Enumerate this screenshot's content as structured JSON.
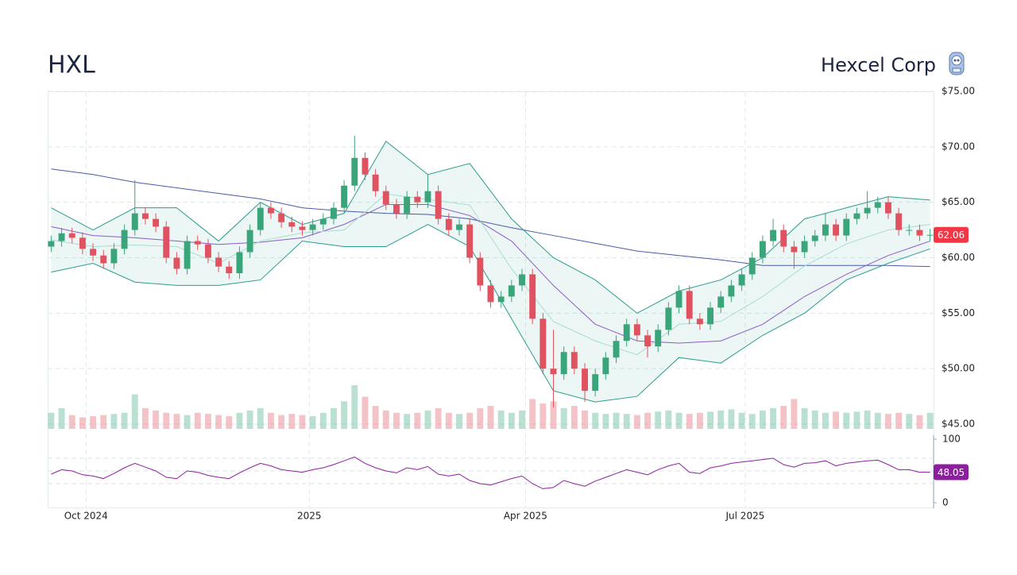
{
  "header": {
    "symbol": "HXL",
    "name": "Hexcel Corp"
  },
  "chart_data": [
    {
      "type": "candlestick",
      "xlim": [
        -1,
        253
      ],
      "xticks": [
        {
          "value": 10,
          "label": "Oct 2024"
        },
        {
          "value": 74,
          "label": "2025"
        },
        {
          "value": 136,
          "label": "Apr 2025"
        },
        {
          "value": 199,
          "label": "Jul 2025"
        }
      ],
      "ylim": [
        45,
        75
      ],
      "yticks": [
        {
          "value": 45,
          "label": "$45.00"
        },
        {
          "value": 50,
          "label": "$50.00"
        },
        {
          "value": 55,
          "label": "$55.00"
        },
        {
          "value": 60,
          "label": "$60.00"
        },
        {
          "value": 65,
          "label": "$65.00"
        },
        {
          "value": 70,
          "label": "$70.00"
        },
        {
          "value": 75,
          "label": "$75.00"
        }
      ],
      "grid": true,
      "up_color": "#3aa57a",
      "down_color": "#e0525f",
      "last_color": "#f23645",
      "x": [
        0,
        3,
        6,
        9,
        12,
        15,
        18,
        21,
        24,
        27,
        30,
        33,
        36,
        39,
        42,
        45,
        48,
        51,
        54,
        57,
        60,
        63,
        66,
        69,
        72,
        75,
        78,
        81,
        84,
        87,
        90,
        93,
        96,
        99,
        102,
        105,
        108,
        111,
        114,
        117,
        120,
        123,
        126,
        129,
        132,
        135,
        138,
        141,
        144,
        147,
        150,
        153,
        156,
        159,
        162,
        165,
        168,
        171,
        174,
        177,
        180,
        183,
        186,
        189,
        192,
        195,
        198,
        201,
        204,
        207,
        210,
        213,
        216,
        219,
        222,
        225,
        228,
        231,
        234,
        237,
        240,
        243,
        246,
        249,
        252
      ],
      "open": [
        61.0,
        61.5,
        62.2,
        61.8,
        60.8,
        60.2,
        59.5,
        60.8,
        62.5,
        64,
        63.5,
        62.8,
        60,
        59,
        61.5,
        61.2,
        60,
        59.2,
        58.6,
        60.5,
        62.5,
        64.5,
        64,
        63.2,
        62.8,
        62.5,
        63,
        63.5,
        64.5,
        66.5,
        69,
        67.5,
        66,
        64.8,
        64,
        65.5,
        65,
        66,
        63.5,
        62.5,
        63,
        60,
        57.5,
        56,
        56.5,
        57.5,
        58.5,
        54.5,
        50,
        49.5,
        51.5,
        50,
        48,
        49.5,
        51,
        52.5,
        54,
        53,
        52,
        53.5,
        55.5,
        57,
        54.5,
        54,
        55.5,
        56.5,
        57.5,
        58.5,
        60,
        61.5,
        62.5,
        61,
        60.5,
        61.5,
        62,
        63,
        62,
        63.5,
        64,
        64.5,
        65,
        64,
        62.5,
        62.5,
        62
      ],
      "high": [
        62.0,
        62.7,
        62.7,
        62.3,
        61.3,
        60.7,
        61.3,
        63.0,
        67.0,
        64.5,
        64.0,
        63.3,
        60.5,
        62.0,
        62.0,
        61.7,
        60.5,
        59.7,
        61.0,
        63.0,
        65.0,
        65.0,
        64.5,
        63.7,
        63.3,
        63.5,
        64.0,
        65.0,
        67.0,
        71.0,
        69.5,
        68.0,
        66.5,
        65.3,
        66.0,
        66.0,
        67.5,
        66.5,
        64.0,
        63.5,
        63.5,
        60.5,
        58.0,
        57.0,
        58.0,
        59.0,
        59.0,
        55.0,
        53.5,
        52.0,
        52.0,
        50.5,
        50.0,
        51.5,
        53.0,
        54.5,
        54.5,
        53.5,
        54.0,
        56.0,
        57.5,
        57.5,
        55.0,
        56.0,
        57.0,
        58.0,
        59.0,
        60.5,
        62.0,
        63.5,
        63.0,
        61.5,
        62.0,
        62.5,
        64.0,
        63.5,
        64.0,
        64.5,
        66.0,
        65.5,
        65.5,
        64.5,
        63.0,
        63.0,
        62.6
      ],
      "low": [
        60.5,
        61.0,
        61.3,
        60.3,
        59.7,
        59.0,
        59.0,
        60.3,
        62.0,
        63.0,
        62.3,
        59.5,
        58.5,
        58.5,
        60.7,
        59.5,
        58.7,
        58.1,
        58.1,
        60.0,
        62.0,
        63.5,
        62.7,
        62.3,
        62.0,
        62.0,
        62.5,
        63.0,
        64.0,
        66.0,
        67.0,
        65.5,
        64.3,
        63.5,
        63.5,
        64.5,
        64.5,
        63.0,
        62.0,
        62.0,
        59.5,
        57.0,
        55.5,
        55.5,
        56.0,
        57.0,
        54.0,
        49.5,
        46.5,
        49.0,
        49.5,
        47.0,
        47.5,
        49.0,
        50.5,
        52.0,
        52.5,
        51.0,
        51.5,
        53.0,
        55.0,
        54.0,
        53.5,
        53.5,
        55.0,
        56.0,
        57.0,
        58.0,
        59.5,
        61.0,
        60.5,
        59.0,
        60.0,
        61.0,
        61.5,
        61.5,
        61.5,
        63.0,
        63.5,
        64.0,
        63.5,
        62.0,
        62.0,
        61.5,
        61.5
      ],
      "close": [
        61.5,
        62.2,
        61.8,
        60.8,
        60.2,
        59.5,
        60.8,
        62.5,
        64,
        63.5,
        62.8,
        60,
        59,
        61.5,
        61.2,
        60,
        59.2,
        58.6,
        60.5,
        62.5,
        64.5,
        64,
        63.2,
        62.8,
        62.5,
        63,
        63.5,
        64.5,
        66.5,
        69,
        67.5,
        66,
        64.8,
        64,
        65.5,
        65,
        66,
        63.5,
        62.5,
        63,
        60,
        57.5,
        56,
        56.5,
        57.5,
        58.5,
        54.5,
        50,
        49.5,
        51.5,
        50,
        48,
        49.5,
        51,
        52.5,
        54,
        53,
        52,
        53.5,
        55.5,
        57,
        54.5,
        54,
        55.5,
        56.5,
        57.5,
        58.5,
        60,
        61.5,
        62.5,
        61,
        60.5,
        61.5,
        62,
        63,
        62,
        63.5,
        64,
        64.5,
        65,
        64,
        62.5,
        62.5,
        62,
        62.06
      ],
      "volume": [
        700,
        900,
        600,
        500,
        550,
        600,
        650,
        700,
        1500,
        900,
        800,
        700,
        650,
        600,
        700,
        650,
        600,
        550,
        700,
        800,
        900,
        700,
        600,
        650,
        600,
        550,
        700,
        900,
        1200,
        1900,
        1400,
        1000,
        800,
        700,
        650,
        700,
        800,
        900,
        700,
        650,
        700,
        900,
        1000,
        800,
        700,
        800,
        1300,
        1100,
        1200,
        900,
        1000,
        800,
        700,
        650,
        700,
        650,
        600,
        700,
        750,
        800,
        700,
        650,
        700,
        750,
        800,
        850,
        700,
        650,
        800,
        900,
        1000,
        1300,
        900,
        800,
        700,
        750,
        700,
        750,
        800,
        700,
        650,
        700,
        650,
        600,
        700
      ],
      "lines": [
        {
          "color": "#4a5aa8",
          "x": [
            0,
            12,
            24,
            36,
            48,
            60,
            72,
            84,
            96,
            108,
            120,
            132,
            144,
            156,
            168,
            180,
            192,
            204,
            216,
            228,
            240,
            252
          ],
          "values": [
            68,
            67.5,
            66.8,
            66.3,
            65.8,
            65.3,
            64.5,
            64.2,
            64.0,
            63.9,
            63.5,
            62.7,
            62.0,
            61.3,
            60.6,
            60.2,
            59.8,
            59.3,
            59.3,
            59.3,
            59.3,
            59.2
          ]
        },
        {
          "color": "#8a5cc8",
          "x": [
            0,
            12,
            24,
            36,
            48,
            60,
            72,
            84,
            96,
            108,
            120,
            132,
            144,
            156,
            168,
            180,
            192,
            204,
            216,
            228,
            240,
            252
          ],
          "values": [
            62.8,
            62.0,
            61.8,
            61.5,
            61.2,
            61.4,
            61.8,
            63,
            64.8,
            64.8,
            63.8,
            61.5,
            57.5,
            54,
            52.5,
            52.3,
            52.5,
            54,
            56.5,
            58.5,
            60.2,
            61.5
          ]
        },
        {
          "color": "#2a9d8f",
          "x": [
            0,
            12,
            24,
            36,
            48,
            60,
            72,
            84,
            96,
            108,
            120,
            132,
            144,
            156,
            168,
            180,
            192,
            204,
            216,
            228,
            240,
            252
          ],
          "values": [
            64.5,
            62.5,
            64.5,
            64.5,
            61.5,
            65,
            63,
            64,
            70.5,
            67.5,
            68.5,
            63.5,
            60,
            58,
            55,
            57,
            58,
            60,
            63.5,
            64.5,
            65.5,
            65.2
          ]
        },
        {
          "color": "#2a9d8f",
          "x": [
            0,
            12,
            24,
            36,
            48,
            60,
            72,
            84,
            96,
            108,
            120,
            132,
            144,
            156,
            168,
            180,
            192,
            204,
            216,
            228,
            240,
            252
          ],
          "values": [
            58.7,
            59.5,
            57.8,
            57.5,
            57.5,
            58,
            61.5,
            61,
            61,
            63,
            61,
            54.5,
            48,
            47,
            47.5,
            51,
            50.5,
            53,
            55,
            58,
            59.5,
            60.8
          ]
        },
        {
          "color": "#a8dccf",
          "x": [
            0,
            12,
            24,
            36,
            48,
            60,
            72,
            84,
            96,
            108,
            120,
            132,
            144,
            156,
            168,
            180,
            192,
            204,
            216,
            228,
            240,
            252
          ],
          "values": [
            61.6,
            61,
            61.15,
            61,
            59.5,
            61.5,
            62.25,
            62.5,
            65.75,
            65.25,
            64.75,
            59,
            54.25,
            52.5,
            51.25,
            54,
            54.25,
            56.5,
            59.25,
            61.25,
            62.5,
            63
          ]
        }
      ]
    },
    {
      "type": "line",
      "color": "#8e1ea0",
      "ylim": [
        0,
        100
      ],
      "yticks": [
        0,
        100
      ],
      "levels": [
        30,
        50,
        70
      ],
      "x": [
        0,
        3,
        6,
        9,
        12,
        15,
        18,
        21,
        24,
        27,
        30,
        33,
        36,
        39,
        42,
        45,
        48,
        51,
        54,
        57,
        60,
        63,
        66,
        69,
        72,
        75,
        78,
        81,
        84,
        87,
        90,
        93,
        96,
        99,
        102,
        105,
        108,
        111,
        114,
        117,
        120,
        123,
        126,
        129,
        132,
        135,
        138,
        141,
        144,
        147,
        150,
        153,
        156,
        159,
        162,
        165,
        168,
        171,
        174,
        177,
        180,
        183,
        186,
        189,
        192,
        195,
        198,
        201,
        204,
        207,
        210,
        213,
        216,
        219,
        222,
        225,
        228,
        231,
        234,
        237,
        240,
        243,
        246,
        249,
        252
      ],
      "values": [
        45,
        52,
        50,
        44,
        42,
        38,
        46,
        55,
        62,
        56,
        50,
        40,
        38,
        50,
        48,
        43,
        40,
        38,
        47,
        55,
        62,
        58,
        52,
        50,
        48,
        52,
        55,
        60,
        66,
        72,
        62,
        55,
        50,
        47,
        55,
        52,
        57,
        45,
        42,
        45,
        35,
        30,
        28,
        33,
        38,
        42,
        30,
        22,
        24,
        35,
        30,
        26,
        34,
        40,
        46,
        52,
        48,
        44,
        52,
        58,
        62,
        48,
        46,
        55,
        58,
        62,
        64,
        66,
        68,
        70,
        60,
        56,
        62,
        63,
        66,
        58,
        62,
        64,
        66,
        67,
        60,
        52,
        52,
        48,
        48.05
      ]
    }
  ]
}
